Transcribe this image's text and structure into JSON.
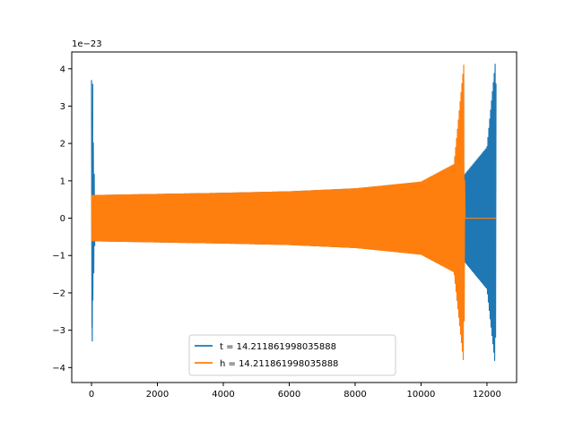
{
  "chart_data": {
    "type": "line",
    "title": "",
    "xlabel": "",
    "ylabel": "",
    "y_offset_label": "1e−23",
    "xlim": [
      -600,
      12900
    ],
    "ylim": [
      -4.4,
      4.45
    ],
    "x_ticks": [
      0,
      2000,
      4000,
      6000,
      8000,
      10000,
      12000
    ],
    "x_tick_labels": [
      "0",
      "2000",
      "4000",
      "6000",
      "8000",
      "10000",
      "12000"
    ],
    "y_ticks": [
      -4,
      -3,
      -2,
      -1,
      0,
      1,
      2,
      3,
      4
    ],
    "y_tick_labels": [
      "−4",
      "−3",
      "−2",
      "−1",
      "0",
      "1",
      "2",
      "3",
      "4"
    ],
    "grid": false,
    "legend_position": "bottom-center",
    "series": [
      {
        "name": "t = 14.211861998035888",
        "color": "#1f77b4",
        "envelope_points": [
          {
            "x": 0,
            "y_max": 3.7,
            "y_min": -3.3
          },
          {
            "x": 100,
            "y_max": 0.62,
            "y_min": -0.62
          },
          {
            "x": 2000,
            "y_max": 0.65,
            "y_min": -0.65
          },
          {
            "x": 4000,
            "y_max": 0.68,
            "y_min": -0.68
          },
          {
            "x": 6000,
            "y_max": 0.72,
            "y_min": -0.72
          },
          {
            "x": 8000,
            "y_max": 0.8,
            "y_min": -0.8
          },
          {
            "x": 10000,
            "y_max": 0.95,
            "y_min": -0.95
          },
          {
            "x": 11300,
            "y_max": 1.15,
            "y_min": -1.15
          },
          {
            "x": 12000,
            "y_max": 1.9,
            "y_min": -1.9
          },
          {
            "x": 12250,
            "y_max": 4.15,
            "y_min": -3.95
          },
          {
            "x": 12280,
            "y_max": 3.5,
            "y_min": -2.0
          }
        ]
      },
      {
        "name": "h = 14.211861998035888",
        "color": "#ff7f0e",
        "envelope_points": [
          {
            "x": 0,
            "y_max": 0.62,
            "y_min": -0.62
          },
          {
            "x": 2000,
            "y_max": 0.65,
            "y_min": -0.65
          },
          {
            "x": 4000,
            "y_max": 0.68,
            "y_min": -0.68
          },
          {
            "x": 6000,
            "y_max": 0.72,
            "y_min": -0.72
          },
          {
            "x": 8000,
            "y_max": 0.8,
            "y_min": -0.8
          },
          {
            "x": 10000,
            "y_max": 0.98,
            "y_min": -0.98
          },
          {
            "x": 11000,
            "y_max": 1.45,
            "y_min": -1.45
          },
          {
            "x": 11300,
            "y_max": 4.15,
            "y_min": -3.95
          },
          {
            "x": 11330,
            "y_max": 0.0,
            "y_min": 0.0
          },
          {
            "x": 12280,
            "y_max": 0.0,
            "y_min": 0.0
          }
        ]
      }
    ]
  }
}
